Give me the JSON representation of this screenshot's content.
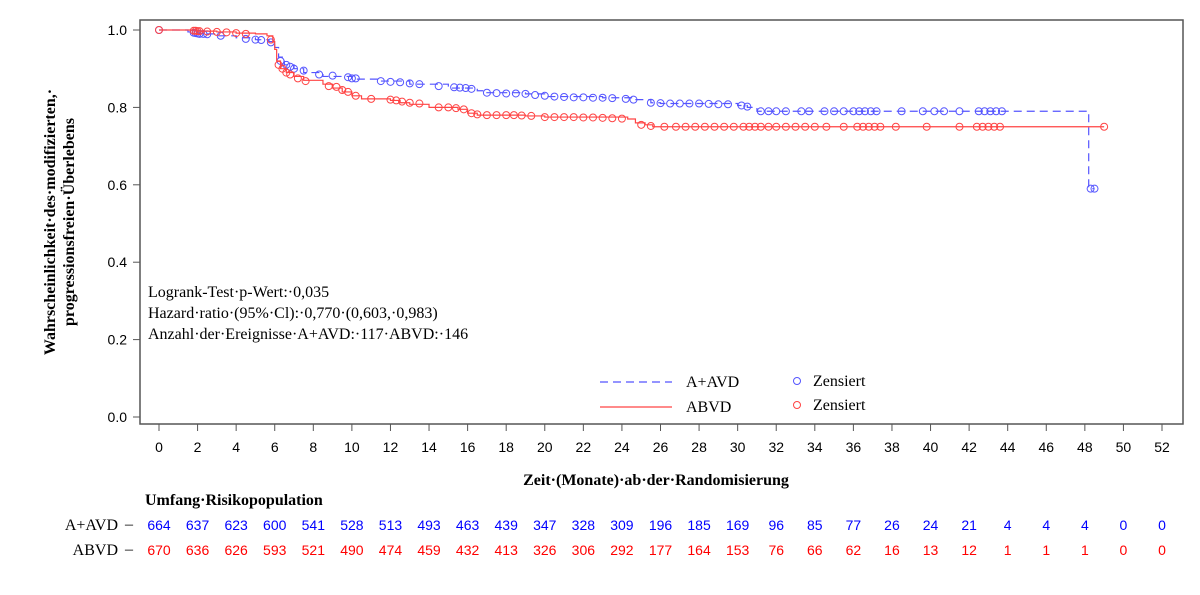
{
  "chart_data": {
    "type": "line",
    "subtype": "kaplan-meier",
    "title": "",
    "xlabel": "Zeit·(Monate)·ab·der·Randomisierung",
    "ylabel_lines": [
      "Wahrscheinlichkeit·des·modifizierten,·",
      "progressionsfreien·Überlebens"
    ],
    "xlim": [
      0,
      52
    ],
    "ylim": [
      0.0,
      1.0
    ],
    "xticks": [
      "0",
      "2",
      "4",
      "6",
      "8",
      "10",
      "12",
      "14",
      "16",
      "18",
      "20",
      "22",
      "24",
      "26",
      "28",
      "30",
      "32",
      "34",
      "36",
      "38",
      "40",
      "42",
      "44",
      "46",
      "48",
      "50",
      "52"
    ],
    "xtick_values": [
      0,
      2,
      4,
      6,
      8,
      10,
      12,
      14,
      16,
      18,
      20,
      22,
      24,
      26,
      28,
      30,
      32,
      34,
      36,
      38,
      40,
      42,
      44,
      46,
      48,
      50,
      52
    ],
    "yticks": [
      "0.0",
      "0.2",
      "0.4",
      "0.6",
      "0.8",
      "1.0"
    ],
    "ytick_values": [
      0.0,
      0.2,
      0.4,
      0.6,
      0.8,
      1.0
    ],
    "grid": false,
    "legend": {
      "placement": "bottom-center",
      "entries": [
        {
          "label": "A+AVD",
          "line_style": "dashed",
          "color": "#5555ff"
        },
        {
          "label": "ABVD",
          "line_style": "solid",
          "color": "#ff4444"
        }
      ],
      "censor_entries": [
        {
          "label": "Zensiert",
          "color": "#5555ff"
        },
        {
          "label": "Zensiert",
          "color": "#ff4444"
        }
      ]
    },
    "annotations": [
      "Logrank-Test·p-Wert:·0,035",
      "Hazard·ratio·(95%·Cl):·0,770·(0,603,·0,983)",
      "Anzahl·der·Ereignisse·A+AVD:·117·ABVD:·146"
    ],
    "series": [
      {
        "name": "A+AVD",
        "color": "#5555ff",
        "line_style": "dashed",
        "steps": [
          [
            0,
            1.0
          ],
          [
            1.5,
            0.995
          ],
          [
            2,
            0.99
          ],
          [
            3,
            0.985
          ],
          [
            4,
            0.98
          ],
          [
            5,
            0.975
          ],
          [
            5.7,
            0.97
          ],
          [
            6,
            0.955
          ],
          [
            6.2,
            0.93
          ],
          [
            6.5,
            0.91
          ],
          [
            7,
            0.9
          ],
          [
            7.5,
            0.89
          ],
          [
            8.5,
            0.88
          ],
          [
            10,
            0.873
          ],
          [
            11.5,
            0.868
          ],
          [
            13,
            0.86
          ],
          [
            15,
            0.85
          ],
          [
            16.5,
            0.843
          ],
          [
            17,
            0.838
          ],
          [
            19,
            0.835
          ],
          [
            20,
            0.828
          ],
          [
            23,
            0.825
          ],
          [
            24.5,
            0.82
          ],
          [
            25.5,
            0.812
          ],
          [
            26,
            0.81
          ],
          [
            30,
            0.805
          ],
          [
            30.5,
            0.8
          ],
          [
            31,
            0.79
          ],
          [
            48.2,
            0.79
          ],
          [
            48.2,
            0.59
          ],
          [
            48.5,
            0.59
          ]
        ],
        "censored": [
          [
            0,
            1.0
          ],
          [
            1.8,
            0.993
          ],
          [
            1.9,
            0.992
          ],
          [
            2,
            0.991
          ],
          [
            2.1,
            0.99
          ],
          [
            2.3,
            0.99
          ],
          [
            2.5,
            0.989
          ],
          [
            3.2,
            0.985
          ],
          [
            4.5,
            0.977
          ],
          [
            5,
            0.975
          ],
          [
            5.3,
            0.974
          ],
          [
            5.8,
            0.968
          ],
          [
            6.3,
            0.92
          ],
          [
            6.6,
            0.91
          ],
          [
            6.8,
            0.905
          ],
          [
            7,
            0.9
          ],
          [
            7.5,
            0.895
          ],
          [
            8.3,
            0.885
          ],
          [
            9,
            0.882
          ],
          [
            9.8,
            0.878
          ],
          [
            10,
            0.875
          ],
          [
            10.2,
            0.875
          ],
          [
            11.5,
            0.868
          ],
          [
            12,
            0.866
          ],
          [
            12.5,
            0.865
          ],
          [
            13,
            0.862
          ],
          [
            13.5,
            0.86
          ],
          [
            14.5,
            0.855
          ],
          [
            15.3,
            0.852
          ],
          [
            15.6,
            0.851
          ],
          [
            15.9,
            0.85
          ],
          [
            16.2,
            0.848
          ],
          [
            17,
            0.838
          ],
          [
            17.5,
            0.837
          ],
          [
            18,
            0.836
          ],
          [
            18.5,
            0.836
          ],
          [
            19,
            0.835
          ],
          [
            19.5,
            0.832
          ],
          [
            20,
            0.83
          ],
          [
            20.5,
            0.828
          ],
          [
            21,
            0.827
          ],
          [
            21.5,
            0.826
          ],
          [
            22,
            0.826
          ],
          [
            22.5,
            0.825
          ],
          [
            23,
            0.825
          ],
          [
            23.5,
            0.824
          ],
          [
            24.2,
            0.822
          ],
          [
            24.6,
            0.82
          ],
          [
            25.5,
            0.812
          ],
          [
            26,
            0.811
          ],
          [
            26.5,
            0.81
          ],
          [
            27,
            0.81
          ],
          [
            27.5,
            0.81
          ],
          [
            28,
            0.81
          ],
          [
            28.5,
            0.809
          ],
          [
            29,
            0.808
          ],
          [
            29.5,
            0.808
          ],
          [
            30.2,
            0.805
          ],
          [
            30.5,
            0.802
          ],
          [
            31.2,
            0.79
          ],
          [
            31.6,
            0.79
          ],
          [
            32,
            0.79
          ],
          [
            32.5,
            0.79
          ],
          [
            33.3,
            0.79
          ],
          [
            33.7,
            0.79
          ],
          [
            34.5,
            0.79
          ],
          [
            35,
            0.79
          ],
          [
            35.5,
            0.79
          ],
          [
            36,
            0.79
          ],
          [
            36.3,
            0.79
          ],
          [
            36.6,
            0.79
          ],
          [
            36.9,
            0.79
          ],
          [
            37.2,
            0.79
          ],
          [
            38.5,
            0.79
          ],
          [
            39.6,
            0.79
          ],
          [
            40.2,
            0.79
          ],
          [
            40.7,
            0.79
          ],
          [
            41.5,
            0.79
          ],
          [
            42.5,
            0.79
          ],
          [
            42.8,
            0.79
          ],
          [
            43.1,
            0.79
          ],
          [
            43.4,
            0.79
          ],
          [
            43.7,
            0.79
          ],
          [
            48.3,
            0.59
          ],
          [
            48.5,
            0.59
          ]
        ]
      },
      {
        "name": "ABVD",
        "color": "#ff4444",
        "line_style": "solid",
        "steps": [
          [
            0,
            1.0
          ],
          [
            2,
            0.997
          ],
          [
            3,
            0.995
          ],
          [
            4,
            0.992
          ],
          [
            5,
            0.99
          ],
          [
            5.6,
            0.985
          ],
          [
            5.9,
            0.97
          ],
          [
            6,
            0.95
          ],
          [
            6.1,
            0.92
          ],
          [
            6.3,
            0.9
          ],
          [
            6.6,
            0.89
          ],
          [
            7,
            0.88
          ],
          [
            7.5,
            0.87
          ],
          [
            8.5,
            0.86
          ],
          [
            9,
            0.85
          ],
          [
            9.5,
            0.84
          ],
          [
            10,
            0.83
          ],
          [
            10.5,
            0.822
          ],
          [
            12,
            0.818
          ],
          [
            12.5,
            0.812
          ],
          [
            13,
            0.808
          ],
          [
            14,
            0.8
          ],
          [
            15.5,
            0.795
          ],
          [
            16,
            0.785
          ],
          [
            16.5,
            0.78
          ],
          [
            19,
            0.778
          ],
          [
            20,
            0.775
          ],
          [
            24.3,
            0.77
          ],
          [
            24.7,
            0.76
          ],
          [
            25.2,
            0.755
          ],
          [
            25.6,
            0.75
          ],
          [
            49,
            0.75
          ]
        ],
        "censored": [
          [
            0,
            1.0
          ],
          [
            1.8,
            0.998
          ],
          [
            1.9,
            0.998
          ],
          [
            2,
            0.997
          ],
          [
            2.1,
            0.997
          ],
          [
            2.5,
            0.996
          ],
          [
            3,
            0.995
          ],
          [
            3.5,
            0.994
          ],
          [
            4,
            0.992
          ],
          [
            4.5,
            0.99
          ],
          [
            5.8,
            0.975
          ],
          [
            6.2,
            0.91
          ],
          [
            6.4,
            0.9
          ],
          [
            6.6,
            0.89
          ],
          [
            6.8,
            0.885
          ],
          [
            7.2,
            0.875
          ],
          [
            7.6,
            0.868
          ],
          [
            8.8,
            0.855
          ],
          [
            9.2,
            0.853
          ],
          [
            9.5,
            0.845
          ],
          [
            9.8,
            0.84
          ],
          [
            10.2,
            0.83
          ],
          [
            11,
            0.822
          ],
          [
            12,
            0.82
          ],
          [
            12.3,
            0.818
          ],
          [
            12.6,
            0.815
          ],
          [
            13,
            0.812
          ],
          [
            13.5,
            0.81
          ],
          [
            14.5,
            0.8
          ],
          [
            15,
            0.8
          ],
          [
            15.4,
            0.798
          ],
          [
            15.8,
            0.795
          ],
          [
            16.2,
            0.785
          ],
          [
            16.5,
            0.782
          ],
          [
            17,
            0.78
          ],
          [
            17.5,
            0.78
          ],
          [
            18,
            0.78
          ],
          [
            18.4,
            0.78
          ],
          [
            18.8,
            0.779
          ],
          [
            19.3,
            0.778
          ],
          [
            20,
            0.775
          ],
          [
            20.5,
            0.775
          ],
          [
            21,
            0.775
          ],
          [
            21.5,
            0.775
          ],
          [
            22,
            0.774
          ],
          [
            22.5,
            0.774
          ],
          [
            23,
            0.773
          ],
          [
            23.5,
            0.772
          ],
          [
            24,
            0.771
          ],
          [
            25,
            0.755
          ],
          [
            25.5,
            0.752
          ],
          [
            26.2,
            0.75
          ],
          [
            26.8,
            0.75
          ],
          [
            27.3,
            0.75
          ],
          [
            27.8,
            0.75
          ],
          [
            28.3,
            0.75
          ],
          [
            28.8,
            0.75
          ],
          [
            29.3,
            0.75
          ],
          [
            29.8,
            0.75
          ],
          [
            30.3,
            0.75
          ],
          [
            30.6,
            0.75
          ],
          [
            30.9,
            0.75
          ],
          [
            31.2,
            0.75
          ],
          [
            31.6,
            0.75
          ],
          [
            32,
            0.75
          ],
          [
            32.5,
            0.75
          ],
          [
            33,
            0.75
          ],
          [
            33.5,
            0.75
          ],
          [
            34,
            0.75
          ],
          [
            34.6,
            0.75
          ],
          [
            35.5,
            0.75
          ],
          [
            36.2,
            0.75
          ],
          [
            36.5,
            0.75
          ],
          [
            36.8,
            0.75
          ],
          [
            37.1,
            0.75
          ],
          [
            37.4,
            0.75
          ],
          [
            38.2,
            0.75
          ],
          [
            39.8,
            0.75
          ],
          [
            41.5,
            0.75
          ],
          [
            42.4,
            0.75
          ],
          [
            42.7,
            0.75
          ],
          [
            43,
            0.75
          ],
          [
            43.3,
            0.75
          ],
          [
            43.6,
            0.75
          ],
          [
            49,
            0.75
          ]
        ]
      }
    ],
    "risk_table": {
      "title": "Umfang·Risikopopulation",
      "times": [
        0,
        2,
        4,
        6,
        8,
        10,
        12,
        14,
        16,
        18,
        20,
        22,
        24,
        26,
        28,
        30,
        32,
        34,
        36,
        38,
        40,
        42,
        44,
        46,
        48,
        50,
        52
      ],
      "rows": [
        {
          "label": "A+AVD",
          "color": "#0000ff",
          "values": [
            664,
            637,
            623,
            600,
            541,
            528,
            513,
            493,
            463,
            439,
            347,
            328,
            309,
            196,
            185,
            169,
            96,
            85,
            77,
            26,
            24,
            21,
            4,
            4,
            4,
            0,
            0
          ]
        },
        {
          "label": "ABVD",
          "color": "#ff0000",
          "values": [
            670,
            636,
            626,
            593,
            521,
            490,
            474,
            459,
            432,
            413,
            326,
            306,
            292,
            177,
            164,
            153,
            76,
            66,
            62,
            16,
            13,
            12,
            1,
            1,
            1,
            0,
            0
          ]
        }
      ]
    }
  }
}
